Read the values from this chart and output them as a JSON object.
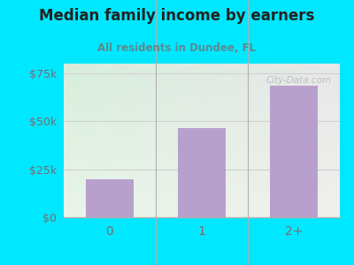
{
  "title": "Median family income by earners",
  "subtitle": "All residents in Dundee, FL",
  "categories": [
    "0",
    "1",
    "2+"
  ],
  "values": [
    20000,
    46500,
    68500
  ],
  "ylim": [
    0,
    80000
  ],
  "yticks": [
    0,
    25000,
    50000,
    75000
  ],
  "ytick_labels": [
    "$0",
    "$25k",
    "$50k",
    "$75k"
  ],
  "bar_color": "#b8a0cc",
  "bar_width": 0.52,
  "background_outer": "#00e8ff",
  "bg_top_left": "#d8eedd",
  "bg_top_right": "#e8e8e8",
  "bg_bottom_left": "#e8f5e8",
  "bg_bottom_right": "#f0f0ee",
  "title_color": "#222222",
  "subtitle_color": "#5a8a90",
  "tick_color": "#7a6a70",
  "grid_color": "#d0d0d0",
  "watermark": "City-Data.com",
  "watermark_color": "#b0b8bc",
  "spine_color": "#b0b0b0"
}
